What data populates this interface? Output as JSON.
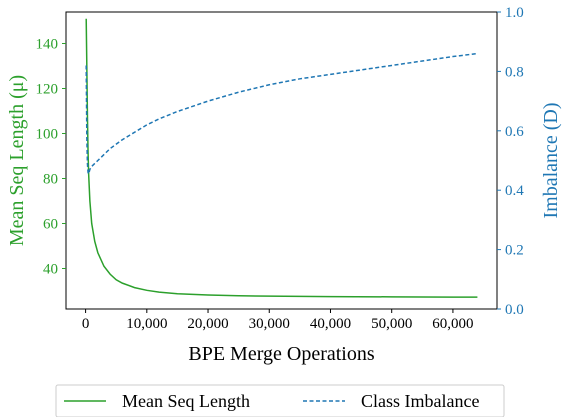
{
  "chart_data": {
    "type": "line",
    "xlabel": "BPE Merge Operations",
    "x_ticks": [
      "0",
      "10,000",
      "20,000",
      "30,000",
      "40,000",
      "50,000",
      "60,000"
    ],
    "x_tick_values": [
      0,
      10000,
      20000,
      30000,
      40000,
      50000,
      60000
    ],
    "xlim": [
      -3200,
      67200
    ],
    "y_left": {
      "label": "Mean Seq Length (μ)",
      "ticks": [
        "40",
        "60",
        "80",
        "100",
        "120",
        "140"
      ],
      "tick_values": [
        40,
        60,
        80,
        100,
        120,
        140
      ],
      "ylim": [
        22,
        154
      ],
      "color": "#2ca02c"
    },
    "y_right": {
      "label": "Imbalance (D)",
      "ticks": [
        "0.0",
        "0.2",
        "0.4",
        "0.6",
        "0.8",
        "1.0"
      ],
      "tick_values": [
        0.0,
        0.2,
        0.4,
        0.6,
        0.8,
        1.0
      ],
      "ylim": [
        0.0,
        1.0
      ],
      "color": "#1f77b4"
    },
    "series": [
      {
        "name": "Mean Seq Length",
        "axis": "left",
        "style": "solid",
        "color": "#2ca02c",
        "x": [
          100,
          200,
          300,
          400,
          500,
          700,
          1000,
          1500,
          2000,
          3000,
          4000,
          5000,
          6000,
          8000,
          10000,
          12000,
          15000,
          20000,
          25000,
          30000,
          40000,
          50000,
          60000,
          64000
        ],
        "y": [
          151,
          130,
          108,
          92,
          82,
          70,
          60,
          52,
          47,
          41,
          37.5,
          35,
          33.5,
          31.5,
          30.3,
          29.5,
          28.8,
          28.2,
          27.9,
          27.7,
          27.5,
          27.4,
          27.3,
          27.3
        ]
      },
      {
        "name": "Class Imbalance",
        "axis": "right",
        "style": "dashed",
        "color": "#1f77b4",
        "x": [
          100,
          200,
          300,
          400,
          500,
          700,
          1000,
          1500,
          2000,
          3000,
          4000,
          5000,
          6000,
          8000,
          10000,
          12000,
          15000,
          20000,
          25000,
          30000,
          35000,
          40000,
          45000,
          50000,
          55000,
          60000,
          64000
        ],
        "y": [
          0.82,
          0.58,
          0.49,
          0.46,
          0.455,
          0.47,
          0.48,
          0.49,
          0.5,
          0.52,
          0.54,
          0.555,
          0.57,
          0.595,
          0.62,
          0.64,
          0.665,
          0.7,
          0.73,
          0.755,
          0.775,
          0.79,
          0.805,
          0.82,
          0.835,
          0.85,
          0.86
        ]
      }
    ],
    "legend": {
      "placement": "bottom-center",
      "entries": [
        "Mean Seq Length",
        "Class Imbalance"
      ]
    }
  }
}
